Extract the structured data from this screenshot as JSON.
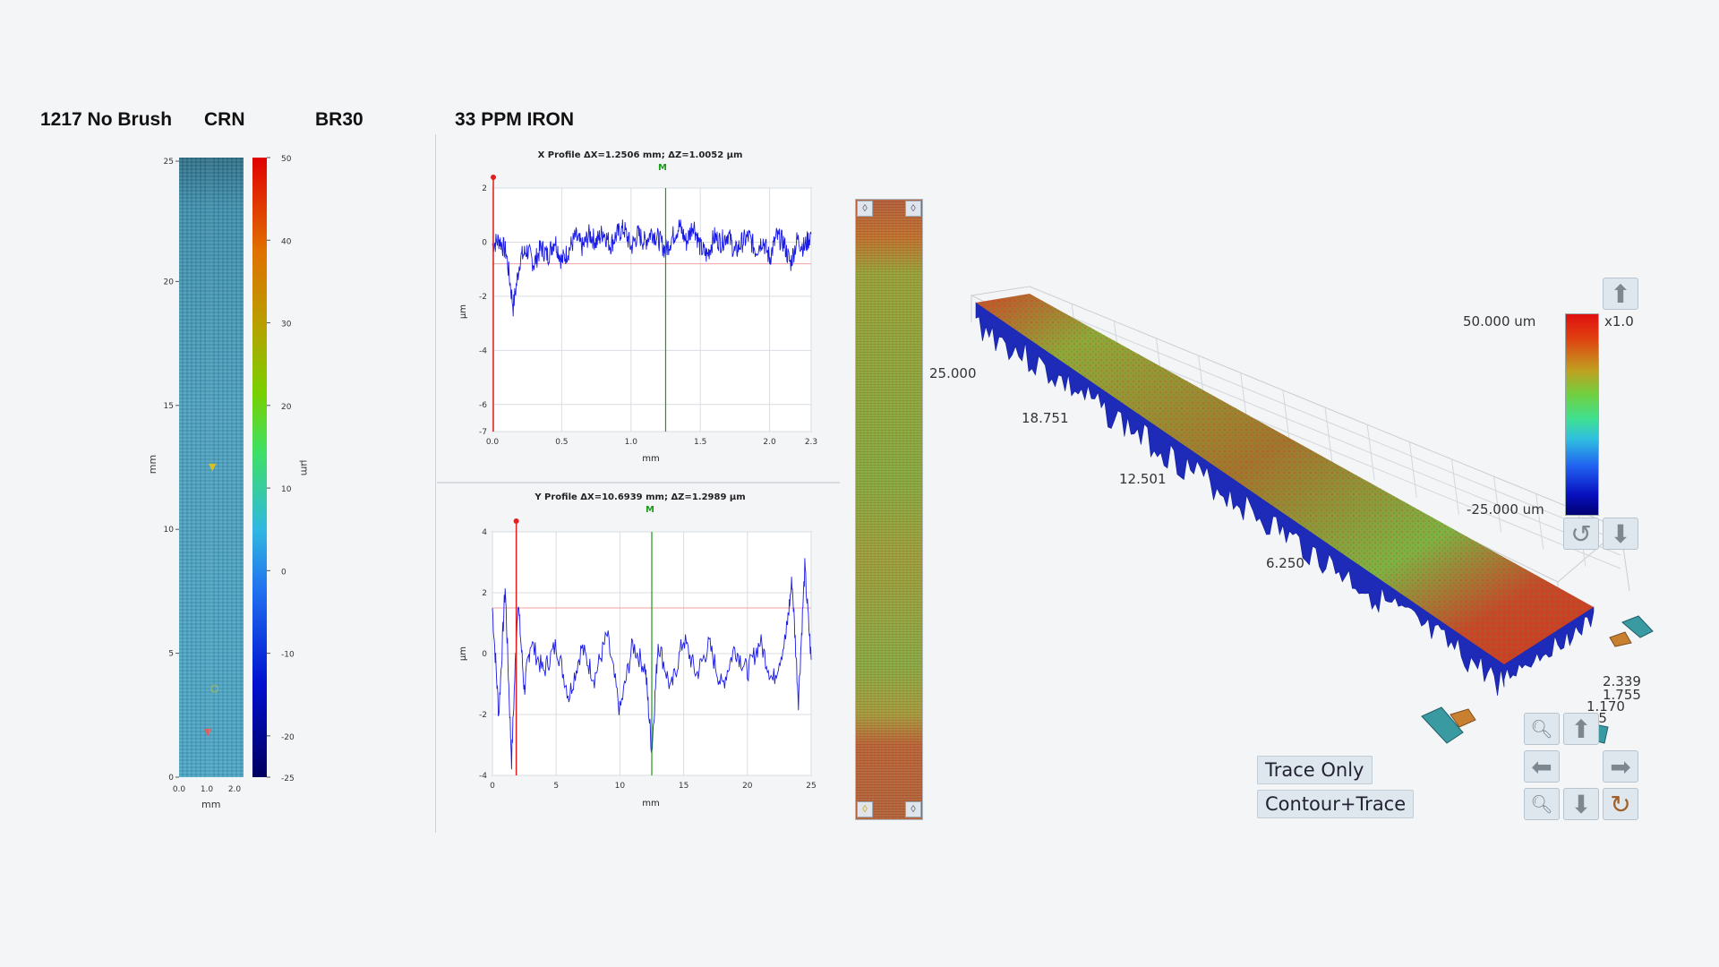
{
  "header": {
    "sample": "1217 No Brush",
    "crn": "CRN",
    "br": "BR30",
    "conditions": "33 PPM IRON"
  },
  "left_heatmap": {
    "y_axis": {
      "label": "mm",
      "ticks": [
        "25",
        "20",
        "15",
        "10",
        "5",
        "0"
      ]
    },
    "x_axis": {
      "label": "mm",
      "ticks": [
        "0.0",
        "1.0",
        "2.0"
      ]
    },
    "colorbar": {
      "label": "µm",
      "ticks": [
        "50",
        "40",
        "30",
        "20",
        "10",
        "0",
        "-10",
        "-20",
        "-25"
      ]
    }
  },
  "chart_data": [
    {
      "type": "line",
      "title": "X Profile  ΔX=1.2506 mm; ΔZ=1.0052 µm",
      "marker": "M",
      "xlabel": "mm",
      "ylabel": "µm",
      "xlim": [
        0,
        2.3
      ],
      "ylim": [
        -7,
        2
      ],
      "x_ticks": [
        "0.0",
        "0.5",
        "1.0",
        "1.5",
        "2.0",
        "2.3"
      ],
      "y_ticks": [
        "2",
        "0",
        "-2",
        "-4",
        "-6",
        "-7"
      ],
      "red_cursor_x": 0,
      "green_cursor_x": 1.25,
      "reference_y": -0.8,
      "series": [
        {
          "x": [
            0,
            0.05,
            0.1,
            0.15,
            0.2,
            0.25,
            0.3,
            0.35,
            0.4,
            0.45,
            0.5,
            0.55,
            0.6,
            0.65,
            0.7,
            0.75,
            0.8,
            0.85,
            0.9,
            0.95,
            1.0,
            1.05,
            1.1,
            1.15,
            1.2,
            1.25,
            1.3,
            1.35,
            1.4,
            1.45,
            1.5,
            1.55,
            1.6,
            1.65,
            1.7,
            1.75,
            1.8,
            1.85,
            1.9,
            1.95,
            2.0,
            2.05,
            2.1,
            2.15,
            2.2,
            2.25,
            2.3
          ],
          "y": [
            -0.1,
            0.1,
            -0.4,
            -2.4,
            -0.6,
            -0.3,
            -0.8,
            -0.2,
            -0.5,
            0.1,
            -0.7,
            -0.3,
            0.2,
            -0.2,
            0.3,
            0.0,
            0.4,
            -0.1,
            0.3,
            0.5,
            -0.2,
            0.3,
            0.0,
            0.4,
            0.1,
            -0.3,
            0.2,
            0.6,
            0.0,
            0.7,
            -0.2,
            -0.5,
            0.2,
            0.0,
            0.3,
            -0.4,
            0.0,
            0.2,
            -0.3,
            0.1,
            -0.6,
            0.2,
            0.0,
            -0.8,
            0.1,
            -0.2,
            0.3
          ]
        }
      ]
    },
    {
      "type": "line",
      "title": "Y Profile  ΔX=10.6939 mm; ΔZ=1.2989 µm",
      "marker": "M",
      "xlabel": "mm",
      "ylabel": "µm",
      "xlim": [
        0,
        25
      ],
      "ylim": [
        -4,
        4
      ],
      "x_ticks": [
        "0",
        "5",
        "10",
        "15",
        "20",
        "25"
      ],
      "y_ticks": [
        "4",
        "2",
        "0",
        "-2",
        "-4"
      ],
      "red_cursor_x": 1.8,
      "green_cursor_x": 12.5,
      "reference_y": 1.5,
      "series": [
        {
          "x": [
            0,
            0.5,
            1,
            1.5,
            2,
            2.5,
            3,
            4,
            5,
            6,
            7,
            8,
            9,
            10,
            11,
            12,
            12.5,
            13,
            14,
            15,
            16,
            17,
            18,
            19,
            20,
            21,
            22,
            23,
            23.5,
            24,
            24.5,
            25
          ],
          "y": [
            1.5,
            -2.0,
            2.2,
            -3.5,
            1.8,
            -1.2,
            0.4,
            -0.6,
            0.3,
            -1.4,
            0.2,
            -0.8,
            0.6,
            -1.9,
            0.3,
            -0.5,
            -3.2,
            0.4,
            -1.2,
            0.5,
            -0.7,
            0.3,
            -1.1,
            0.2,
            -0.6,
            0.4,
            -0.9,
            0.5,
            2.4,
            -1.5,
            2.8,
            -0.2
          ]
        }
      ]
    }
  ],
  "view3d": {
    "axis_labels": [
      "25.000",
      "18.751",
      "12.501",
      "6.250"
    ],
    "side_labels": [
      "2.339",
      "1.755",
      "1.170",
      "0.585"
    ]
  },
  "colorbar_right": {
    "max_label": "50.000 um",
    "min_label": "-25.000 um",
    "scale_label": "x1.0"
  },
  "buttons": {
    "trace_only": "Trace Only",
    "contour_trace": "Contour+Trace"
  },
  "icons": {
    "up": "arrow-up-icon",
    "down": "arrow-down-icon",
    "left": "arrow-left-icon",
    "right": "arrow-right-icon",
    "zoom_in": "zoom-in-icon",
    "zoom_out": "zoom-out-icon",
    "rotate": "rotate-icon"
  },
  "colors": {
    "trace": "#1a1ae6",
    "red_cursor": "#e02020",
    "green_cursor": "#1b9a1b",
    "ref_line": "#f0a0a0"
  }
}
